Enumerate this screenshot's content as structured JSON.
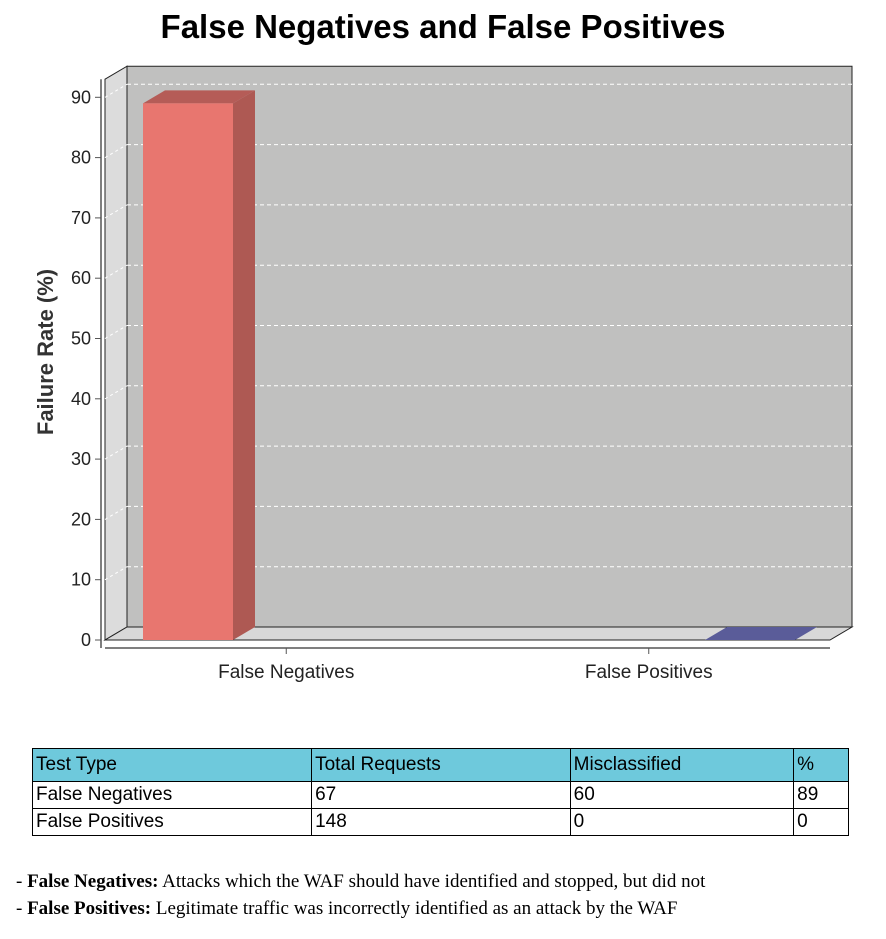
{
  "chart_data": {
    "type": "bar",
    "title": "False Negatives and False Positives",
    "ylabel": "Failure Rate (%)",
    "xlabel": "",
    "categories": [
      "False Negatives",
      "False Positives"
    ],
    "values": [
      89,
      0
    ],
    "colors": [
      "#e8766f",
      "#7476c4"
    ],
    "ylim": [
      0,
      93
    ],
    "yticks": [
      0,
      10,
      20,
      30,
      40,
      50,
      60,
      70,
      80,
      90
    ],
    "grid": true,
    "style": "3d"
  },
  "table": {
    "headers": [
      "Test Type",
      "Total Requests",
      "Misclassified",
      "%"
    ],
    "rows": [
      [
        "False Negatives",
        "67",
        "60",
        "89"
      ],
      [
        "False Positives",
        "148",
        "0",
        "0"
      ]
    ]
  },
  "notes": [
    {
      "term": "False Negatives:",
      "text": "Attacks which the WAF should have identified and stopped, but did not"
    },
    {
      "term": "False Positives:",
      "text": "Legitimate traffic was incorrectly identified as an attack by the WAF"
    }
  ]
}
